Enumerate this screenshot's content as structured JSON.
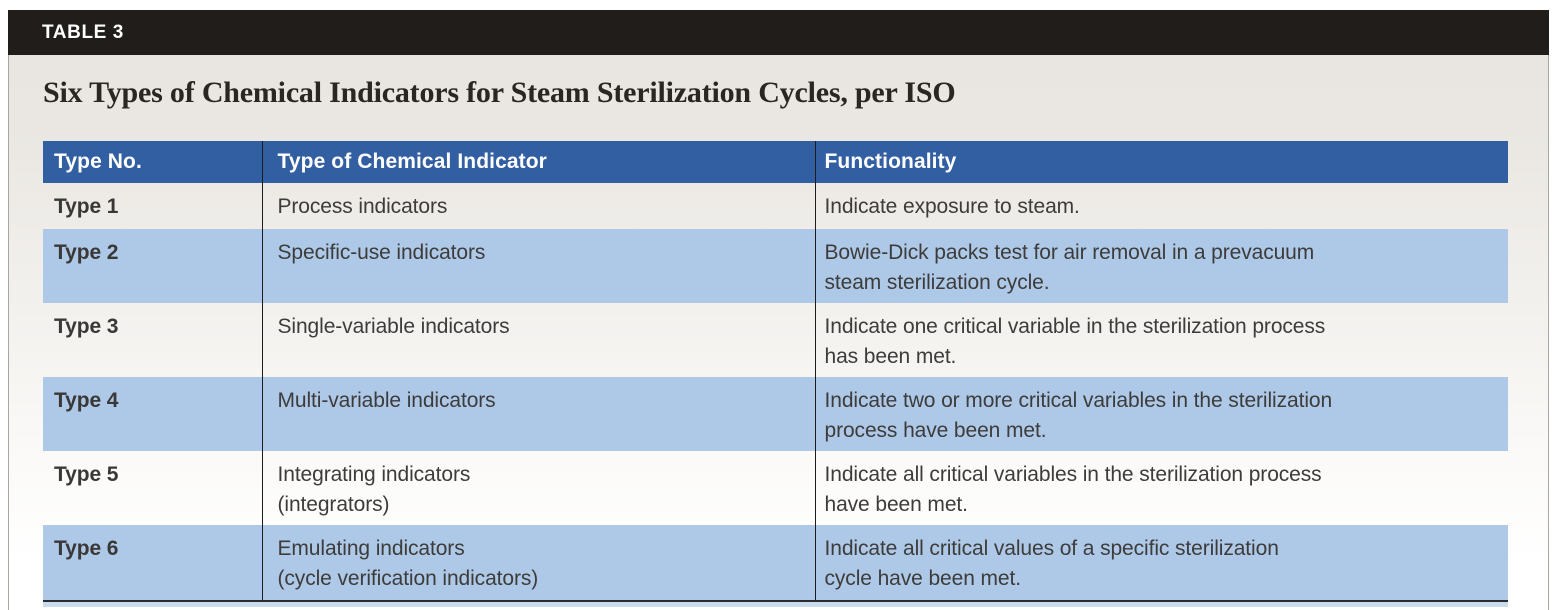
{
  "label_bar": {
    "text": "TABLE 3"
  },
  "title": "Six Types of Chemical Indicators for Steam Sterilization Cycles, per ISO",
  "table": {
    "columns": [
      "Type No.",
      "Type of Chemical Indicator",
      "Functionality"
    ],
    "rows": [
      {
        "type_no": "Type 1",
        "indicator_lines": [
          "Process indicators"
        ],
        "functionality_lines": [
          "Indicate exposure to steam."
        ]
      },
      {
        "type_no": "Type 2",
        "indicator_lines": [
          "Specific-use indicators"
        ],
        "functionality_lines": [
          "Bowie-Dick packs test for air removal in a prevacuum",
          "steam sterilization cycle."
        ]
      },
      {
        "type_no": "Type 3",
        "indicator_lines": [
          "Single-variable indicators"
        ],
        "functionality_lines": [
          "Indicate one critical variable in the sterilization process",
          "has been met."
        ]
      },
      {
        "type_no": "Type 4",
        "indicator_lines": [
          "Multi-variable indicators"
        ],
        "functionality_lines": [
          "Indicate two or more critical variables in the sterilization",
          "process have been met."
        ]
      },
      {
        "type_no": "Type 5",
        "indicator_lines": [
          "Integrating indicators",
          "(integrators)"
        ],
        "functionality_lines": [
          "Indicate all critical variables in the sterilization process",
          "have been met."
        ]
      },
      {
        "type_no": "Type 6",
        "indicator_lines": [
          "Emulating indicators",
          "(cycle verification indicators)"
        ],
        "functionality_lines": [
          "Indicate all critical values of a specific sterilization",
          "cycle have been met."
        ]
      }
    ]
  },
  "colors": {
    "label_bar_background": "#201d1a",
    "header_row_blue": "#325fa2",
    "stripe_row_blue": "#aec9e7",
    "page_background_top": "#e8e5e0",
    "page_background_bottom": "#ffffff",
    "body_text": "#3d3c3b",
    "title_text": "#2a2622"
  }
}
